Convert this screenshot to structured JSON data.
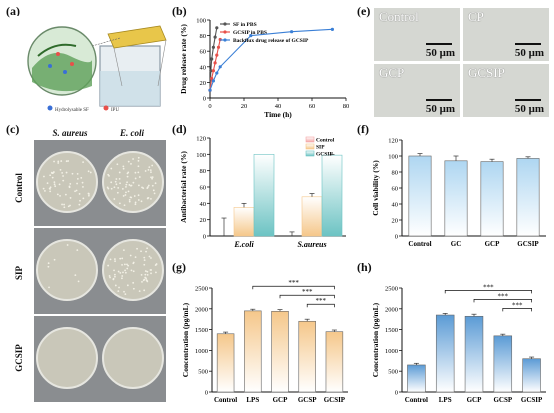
{
  "panels": {
    "a": {
      "label": "(a)",
      "legend": [
        "Hydrolysable SF",
        "IPU"
      ]
    },
    "b": {
      "label": "(b)"
    },
    "c": {
      "label": "(c)",
      "col_headers": [
        "S. aureus",
        "E. coli"
      ],
      "row_labels": [
        "Control",
        "SIP",
        "GCSIP"
      ]
    },
    "d": {
      "label": "(d)"
    },
    "e": {
      "label": "(e)",
      "tiles": [
        "Control",
        "CP",
        "GCP",
        "GCSIP"
      ],
      "scale": "50 μm"
    },
    "f": {
      "label": "(f)"
    },
    "g": {
      "label": "(g)"
    },
    "h": {
      "label": "(h)"
    }
  },
  "chart_data": [
    {
      "id": "b",
      "type": "line",
      "ylabel": "Drug release rate (%)",
      "xlabel": "Time (h)",
      "xlim": [
        0,
        80
      ],
      "ylim": [
        0,
        100
      ],
      "xticks": [
        0,
        20,
        40,
        60,
        80
      ],
      "yticks": [
        0,
        20,
        40,
        60,
        80,
        100
      ],
      "series": [
        {
          "name": "SF in PBS",
          "color": "#555555",
          "x": [
            0,
            0.5,
            1,
            2,
            3,
            4
          ],
          "y": [
            10,
            35,
            50,
            65,
            78,
            90
          ]
        },
        {
          "name": "GCSIP in PBS",
          "color": "#e8504a",
          "x": [
            0,
            1,
            2,
            3,
            4,
            5,
            6
          ],
          "y": [
            10,
            25,
            35,
            45,
            55,
            65,
            75
          ]
        },
        {
          "name": "Backflux drug release of GCSIP",
          "color": "#3a7fd6",
          "x": [
            0,
            2,
            4,
            6,
            24,
            48,
            72
          ],
          "y": [
            10,
            22,
            32,
            40,
            80,
            85,
            88
          ]
        }
      ]
    },
    {
      "id": "d",
      "type": "bar",
      "ylabel": "Antibacterial rate (%)",
      "ylim": [
        0,
        120
      ],
      "yticks": [
        0,
        20,
        40,
        60,
        80,
        100,
        120
      ],
      "categories": [
        "E.coli",
        "S.aureus"
      ],
      "series": [
        {
          "name": "Control",
          "color": "#f4a6a6",
          "values": [
            0,
            0
          ],
          "errors": [
            22,
            5
          ]
        },
        {
          "name": "SIP",
          "color": "#f5c78a",
          "values": [
            35,
            48
          ],
          "errors": [
            5,
            4
          ]
        },
        {
          "name": "GCSIP",
          "color": "#6cc3c3",
          "values": [
            100,
            99
          ],
          "errors": [
            0,
            1
          ]
        }
      ]
    },
    {
      "id": "f",
      "type": "bar",
      "ylabel": "Cell viability (%)",
      "ylim": [
        0,
        120
      ],
      "yticks": [
        0,
        20,
        40,
        60,
        80,
        100,
        120
      ],
      "categories": [
        "Control",
        "GC",
        "GCP",
        "GCSIP"
      ],
      "values": [
        100,
        94,
        93,
        97
      ],
      "errors": [
        3,
        6,
        3,
        2
      ],
      "color": "#aed6f1"
    },
    {
      "id": "g",
      "type": "bar",
      "ylabel": "Concentration (pg/mL)",
      "ylim": [
        0,
        2500
      ],
      "yticks": [
        0,
        500,
        1000,
        1500,
        2000,
        2500
      ],
      "categories": [
        "Control",
        "LPS",
        "GCP",
        "GCSP",
        "GCSIP"
      ],
      "values": [
        1400,
        1950,
        1940,
        1700,
        1450
      ],
      "errors": [
        40,
        40,
        40,
        50,
        40
      ],
      "color": "#f5c78a",
      "significance": [
        {
          "from": 1,
          "to": 4,
          "label": "***"
        },
        {
          "from": 2,
          "to": 4,
          "label": "***"
        },
        {
          "from": 3,
          "to": 4,
          "label": "***"
        }
      ]
    },
    {
      "id": "h",
      "type": "bar",
      "ylabel": "Concentration (pg/mL)",
      "ylim": [
        0,
        2500
      ],
      "yticks": [
        0,
        500,
        1000,
        1500,
        2000,
        2500
      ],
      "categories": [
        "Control",
        "LPS",
        "GCP",
        "GCSP",
        "GCSIP"
      ],
      "values": [
        650,
        1850,
        1820,
        1350,
        800
      ],
      "errors": [
        40,
        40,
        50,
        40,
        40
      ],
      "color": "#5b9bd5",
      "significance": [
        {
          "from": 1,
          "to": 4,
          "label": "***"
        },
        {
          "from": 2,
          "to": 4,
          "label": "***"
        },
        {
          "from": 3,
          "to": 4,
          "label": "***"
        }
      ]
    }
  ]
}
